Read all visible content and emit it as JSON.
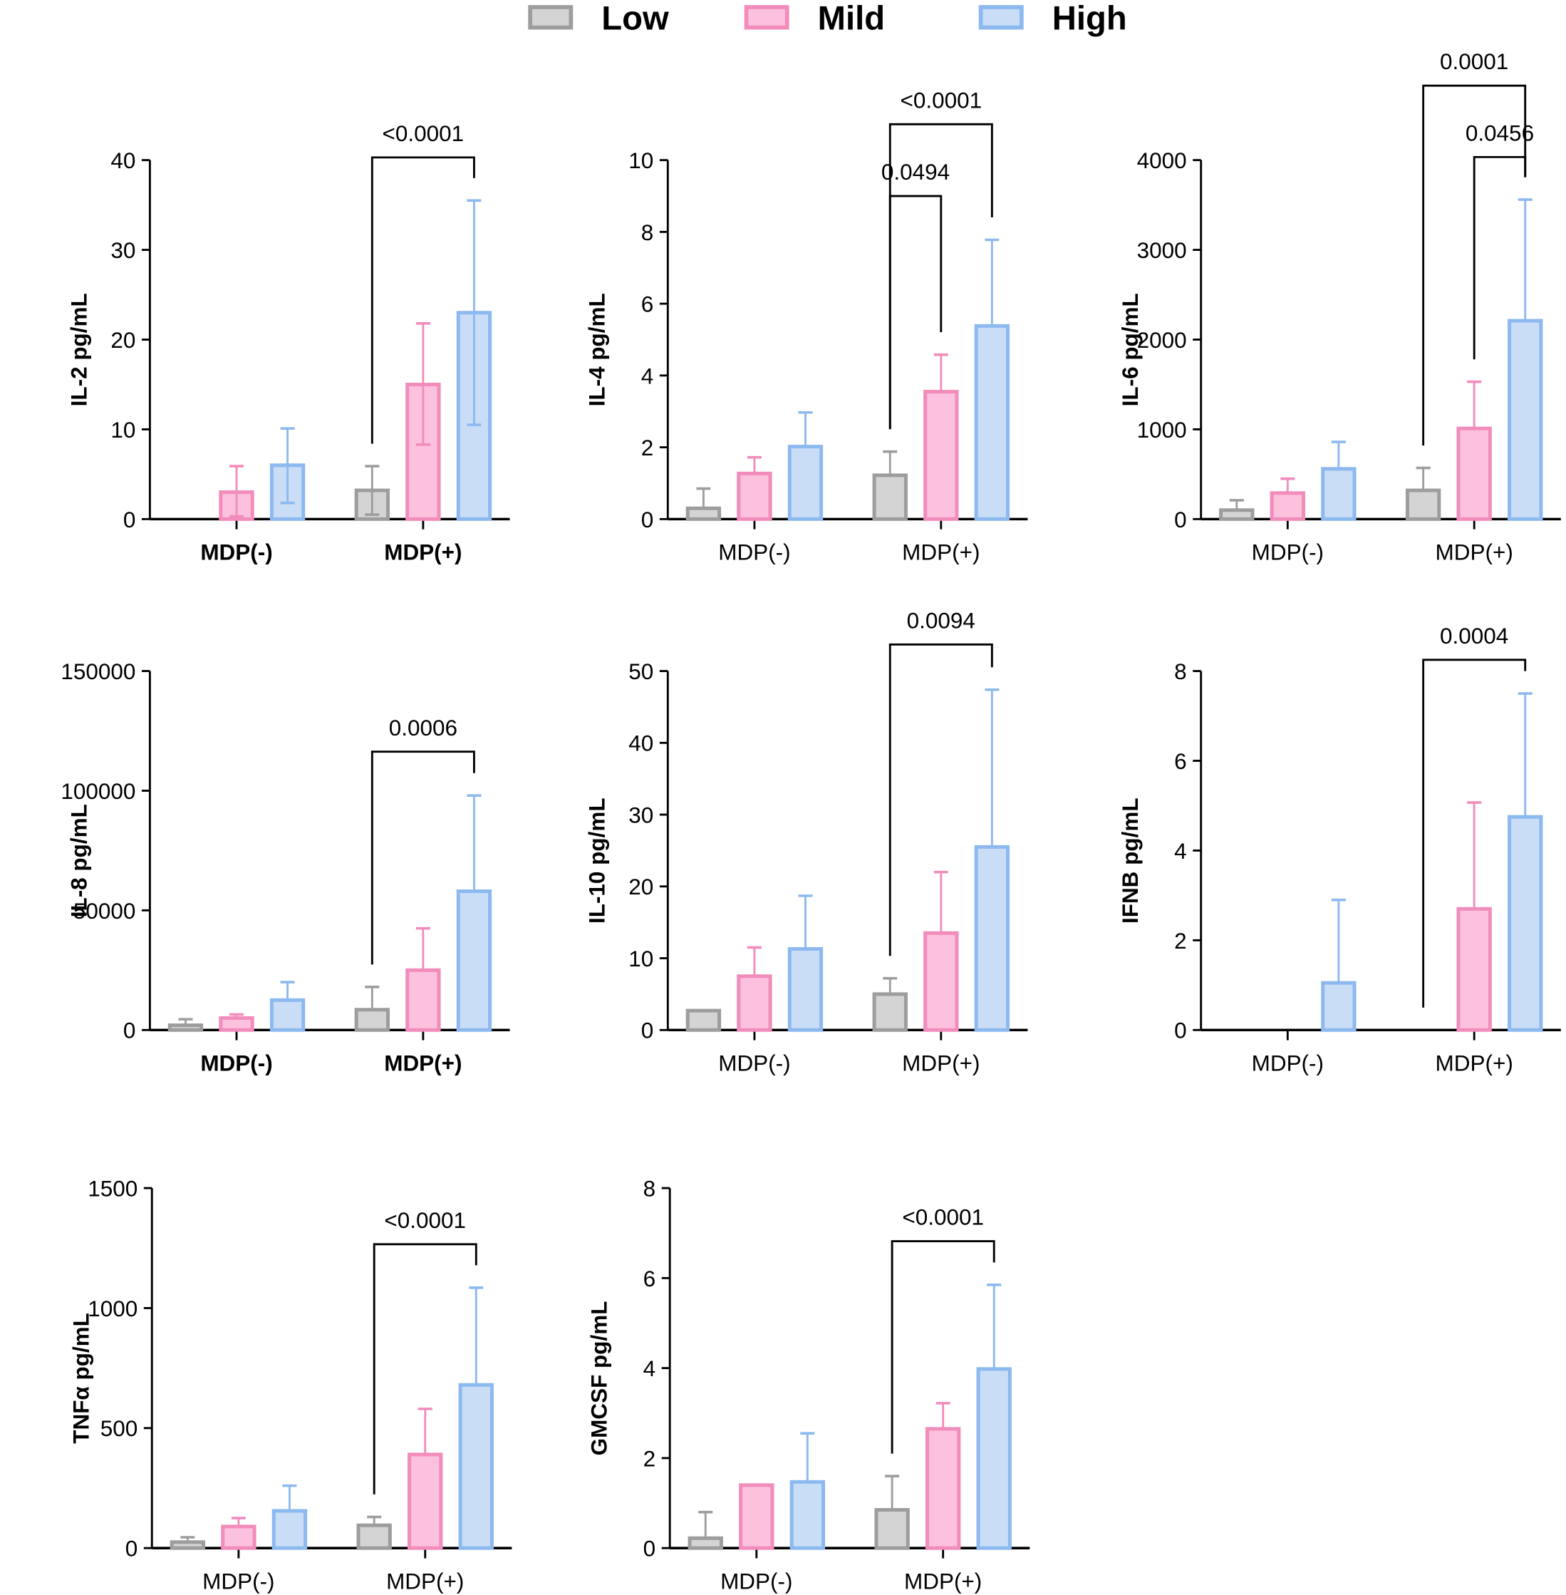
{
  "colors": {
    "Low": {
      "fill": "#d4d4d4",
      "stroke": "#9d9d9d"
    },
    "Mild": {
      "fill": "#fcc1dd",
      "stroke": "#f28cbb"
    },
    "High": {
      "fill": "#c9ddf6",
      "stroke": "#8cb9ef"
    }
  },
  "legend": [
    "Low",
    "Mild",
    "High"
  ],
  "chart_data": [
    {
      "type": "bar",
      "ylabel": "IL-2 pg/mL",
      "ylim": [
        0,
        40
      ],
      "yticks": [
        0,
        10,
        20,
        30,
        40
      ],
      "categories": [
        "MDP(-)",
        "MDP(+)"
      ],
      "bold_xlabels": true,
      "two_sided_errors": true,
      "series": [
        {
          "name": "Low",
          "values": [
            0,
            3.2
          ],
          "err_upper": [
            null,
            5.9
          ],
          "err_lower": [
            null,
            0.5
          ]
        },
        {
          "name": "Mild",
          "values": [
            3,
            15
          ],
          "err_upper": [
            5.9,
            21.8
          ],
          "err_lower": [
            0.3,
            8.3
          ]
        },
        {
          "name": "High",
          "values": [
            6,
            23
          ],
          "err_upper": [
            10.1,
            35.5
          ],
          "err_lower": [
            1.8,
            10.5
          ]
        }
      ],
      "annotations": [
        {
          "label": "<0.0001",
          "category": "MDP(+)",
          "from": "Low",
          "to": "High",
          "level": 40.3
        }
      ]
    },
    {
      "type": "bar",
      "ylabel": "IL-4 pg/mL",
      "ylim": [
        0,
        10
      ],
      "yticks": [
        0,
        2,
        4,
        6,
        8,
        10
      ],
      "categories": [
        "MDP(-)",
        "MDP(+)"
      ],
      "bold_xlabels": false,
      "series": [
        {
          "name": "Low",
          "values": [
            0.3,
            1.22
          ],
          "err_upper": [
            0.85,
            1.88
          ]
        },
        {
          "name": "Mild",
          "values": [
            1.27,
            3.55
          ],
          "err_upper": [
            1.72,
            4.58
          ]
        },
        {
          "name": "High",
          "values": [
            2.02,
            5.38
          ],
          "err_upper": [
            2.97,
            7.78
          ]
        }
      ],
      "annotations": [
        {
          "label": "0.0494",
          "category": "MDP(+)",
          "from": "Low",
          "to": "Mild",
          "level": 9.0
        },
        {
          "label": "<0.0001",
          "category": "MDP(+)",
          "from": "Low",
          "to": "High",
          "level": 11.0
        }
      ]
    },
    {
      "type": "bar",
      "ylabel": "IL-6 pg/mL",
      "ylim": [
        0,
        4000
      ],
      "yticks": [
        0,
        1000,
        2000,
        3000,
        4000
      ],
      "categories": [
        "MDP(-)",
        "MDP(+)"
      ],
      "bold_xlabels": false,
      "series": [
        {
          "name": "Low",
          "values": [
            100,
            320
          ],
          "err_upper": [
            210,
            570
          ]
        },
        {
          "name": "Mild",
          "values": [
            290,
            1010
          ],
          "err_upper": [
            450,
            1530
          ]
        },
        {
          "name": "High",
          "values": [
            560,
            2210
          ],
          "err_upper": [
            860,
            3560
          ]
        }
      ],
      "annotations": [
        {
          "label": "0.0456",
          "category": "MDP(+)",
          "from": "Mild",
          "to": "High",
          "level": 4034
        },
        {
          "label": "0.0001",
          "category": "MDP(+)",
          "from": "Low",
          "to": "High",
          "level": 4830
        }
      ]
    },
    {
      "type": "bar",
      "ylabel": "IL-8 pg/mL",
      "ylim": [
        0,
        150000
      ],
      "yticks": [
        0,
        50000,
        100000,
        150000
      ],
      "categories": [
        "MDP(-)",
        "MDP(+)"
      ],
      "bold_xlabels": true,
      "series": [
        {
          "name": "Low",
          "values": [
            2000,
            8500
          ],
          "err_upper": [
            4500,
            18000
          ]
        },
        {
          "name": "Mild",
          "values": [
            5000,
            25000
          ],
          "err_upper": [
            6500,
            42500
          ]
        },
        {
          "name": "High",
          "values": [
            12500,
            58000
          ],
          "err_upper": [
            20000,
            98000
          ]
        }
      ],
      "annotations": [
        {
          "label": "0.0006",
          "category": "MDP(+)",
          "from": "Low",
          "to": "High",
          "level": 116300
        }
      ]
    },
    {
      "type": "bar",
      "ylabel": "IL-10 pg/mL",
      "ylim": [
        0,
        50
      ],
      "yticks": [
        0,
        10,
        20,
        30,
        40,
        50
      ],
      "categories": [
        "MDP(-)",
        "MDP(+)"
      ],
      "bold_xlabels": false,
      "series": [
        {
          "name": "Low",
          "values": [
            2.7,
            5
          ],
          "err_upper": [
            null,
            7.2
          ]
        },
        {
          "name": "Mild",
          "values": [
            7.5,
            13.5
          ],
          "err_upper": [
            11.5,
            22
          ]
        },
        {
          "name": "High",
          "values": [
            11.3,
            25.5
          ],
          "err_upper": [
            18.7,
            47.4
          ]
        }
      ],
      "annotations": [
        {
          "label": "0.0094",
          "category": "MDP(+)",
          "from": "Low",
          "to": "High",
          "level": 53.7
        }
      ]
    },
    {
      "type": "bar",
      "ylabel": "IFNB pg/mL",
      "ylim": [
        0,
        8
      ],
      "yticks": [
        0,
        2,
        4,
        6,
        8
      ],
      "categories": [
        "MDP(-)",
        "MDP(+)"
      ],
      "bold_xlabels": false,
      "series": [
        {
          "name": "Low",
          "values": [
            0,
            0
          ],
          "err_upper": [
            null,
            null
          ]
        },
        {
          "name": "Mild",
          "values": [
            0,
            2.7
          ],
          "err_upper": [
            null,
            5.07
          ]
        },
        {
          "name": "High",
          "values": [
            1.05,
            4.75
          ],
          "err_upper": [
            2.9,
            7.5
          ]
        }
      ],
      "annotations": [
        {
          "label": "0.0004",
          "category": "MDP(+)",
          "from": "Low",
          "to": "High",
          "level": 8.25
        }
      ]
    },
    {
      "type": "bar",
      "ylabel": "TNFα pg/mL",
      "ylim": [
        0,
        1500
      ],
      "yticks": [
        0,
        500,
        1000,
        1500
      ],
      "categories": [
        "MDP(-)",
        "MDP(+)"
      ],
      "bold_xlabels": false,
      "series": [
        {
          "name": "Low",
          "values": [
            25,
            95
          ],
          "err_upper": [
            45,
            130
          ]
        },
        {
          "name": "Mild",
          "values": [
            90,
            390
          ],
          "err_upper": [
            125,
            580
          ]
        },
        {
          "name": "High",
          "values": [
            155,
            680
          ],
          "err_upper": [
            260,
            1085
          ]
        }
      ],
      "annotations": [
        {
          "label": "<0.0001",
          "category": "MDP(+)",
          "from": "Low",
          "to": "High",
          "level": 1266
        }
      ]
    },
    {
      "type": "bar",
      "ylabel": "GMCSF pg/mL",
      "ylim": [
        0,
        8
      ],
      "yticks": [
        0,
        2,
        4,
        6,
        8
      ],
      "categories": [
        "MDP(-)",
        "MDP(+)"
      ],
      "bold_xlabels": false,
      "series": [
        {
          "name": "Low",
          "values": [
            0.22,
            0.85
          ],
          "err_upper": [
            0.8,
            1.6
          ]
        },
        {
          "name": "Mild",
          "values": [
            1.4,
            2.65
          ],
          "err_upper": [
            null,
            3.22
          ]
        },
        {
          "name": "High",
          "values": [
            1.47,
            3.98
          ],
          "err_upper": [
            2.55,
            5.85
          ]
        }
      ],
      "annotations": [
        {
          "label": "<0.0001",
          "category": "MDP(+)",
          "from": "Low",
          "to": "High",
          "level": 6.82
        }
      ]
    }
  ]
}
